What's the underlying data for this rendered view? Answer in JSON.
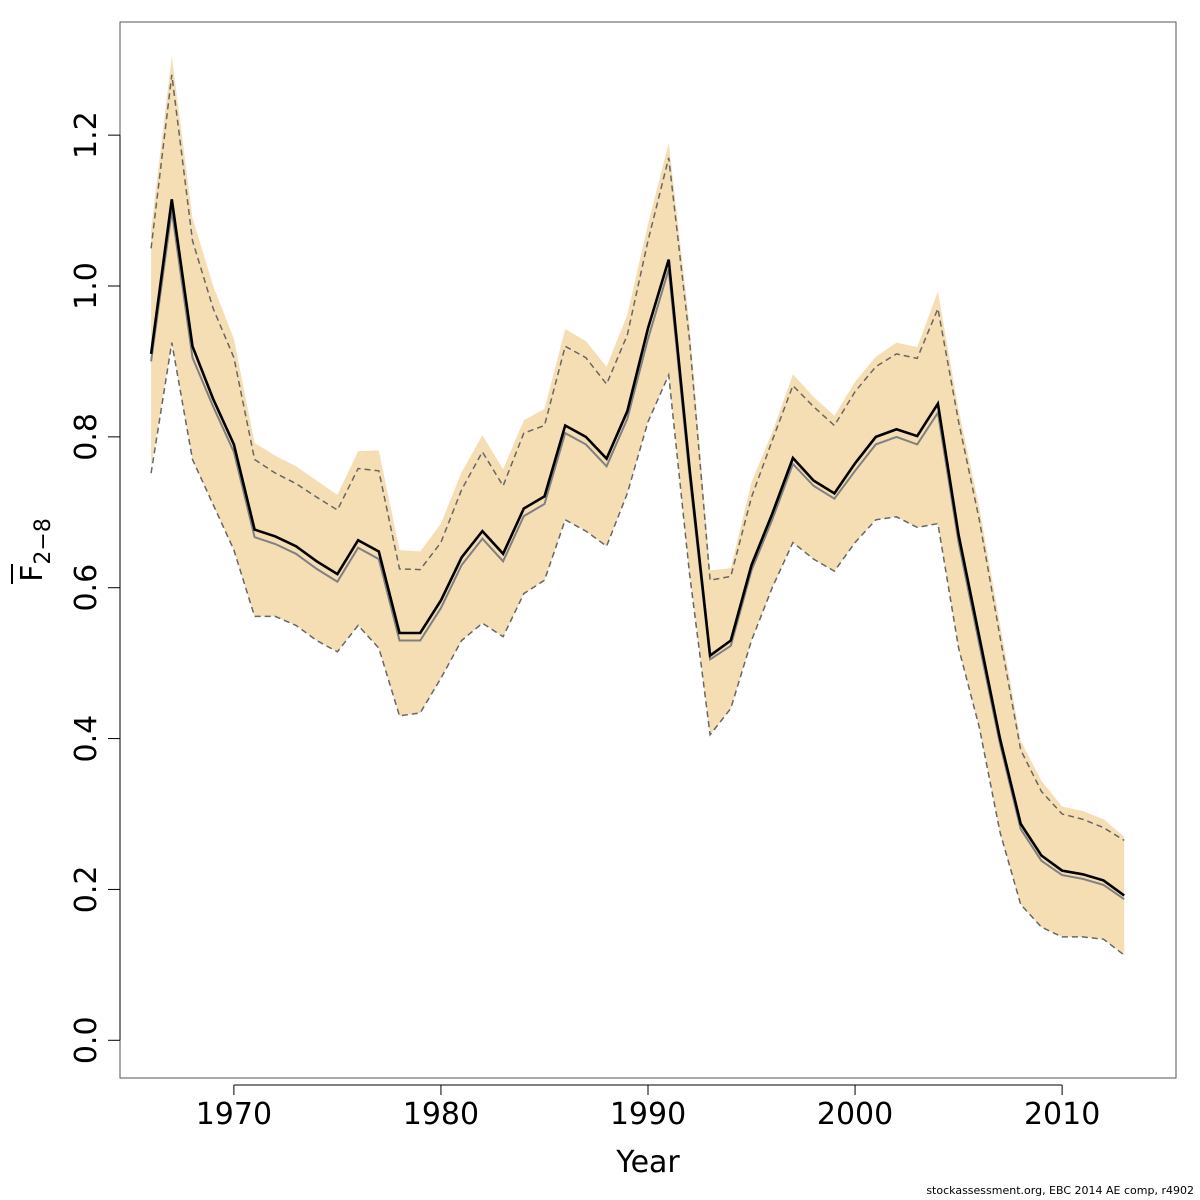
{
  "chart_data": {
    "type": "line",
    "title": "",
    "xlabel": "Year",
    "ylabel": {
      "main": "F",
      "sub": "2−8",
      "overline": true
    },
    "xlim": [
      1964.5,
      2015.5
    ],
    "ylim": [
      -0.05,
      1.35
    ],
    "xticks": [
      1970,
      1980,
      1990,
      2000,
      2010
    ],
    "yticks": [
      0.0,
      0.2,
      0.4,
      0.6,
      0.8,
      1.0,
      1.2
    ],
    "ytick_labels": [
      "0.0",
      "0.2",
      "0.4",
      "0.6",
      "0.8",
      "1.0",
      "1.2"
    ],
    "grid": false,
    "legend": "none",
    "colors": {
      "band": "#f5deb3",
      "estimate": "#000000",
      "median": "#808080",
      "bounds": "#666666"
    },
    "x": [
      1966,
      1967,
      1968,
      1969,
      1970,
      1971,
      1972,
      1973,
      1974,
      1975,
      1976,
      1977,
      1978,
      1979,
      1980,
      1981,
      1982,
      1983,
      1984,
      1985,
      1986,
      1987,
      1988,
      1989,
      1990,
      1991,
      1992,
      1993,
      1994,
      1995,
      1996,
      1997,
      1998,
      1999,
      2000,
      2001,
      2002,
      2003,
      2004,
      2005,
      2006,
      2007,
      2008,
      2009,
      2010,
      2011,
      2012,
      2013
    ],
    "series": [
      {
        "role": "estimate",
        "values": [
          0.91,
          1.115,
          0.92,
          0.85,
          0.79,
          0.677,
          0.668,
          0.655,
          0.635,
          0.618,
          0.663,
          0.648,
          0.54,
          0.54,
          0.583,
          0.64,
          0.675,
          0.645,
          0.705,
          0.721,
          0.815,
          0.8,
          0.771,
          0.834,
          0.944,
          1.035,
          0.76,
          0.51,
          0.53,
          0.63,
          0.698,
          0.772,
          0.742,
          0.725,
          0.765,
          0.8,
          0.81,
          0.801,
          0.844,
          0.67,
          0.535,
          0.4,
          0.287,
          0.245,
          0.225,
          0.22,
          0.212,
          0.192
        ]
      },
      {
        "role": "median",
        "values": [
          0.9,
          1.1,
          0.905,
          0.84,
          0.78,
          0.667,
          0.658,
          0.645,
          0.625,
          0.608,
          0.653,
          0.638,
          0.53,
          0.53,
          0.573,
          0.63,
          0.665,
          0.635,
          0.695,
          0.711,
          0.805,
          0.79,
          0.761,
          0.824,
          0.93,
          1.022,
          0.75,
          0.505,
          0.523,
          0.623,
          0.69,
          0.764,
          0.735,
          0.718,
          0.755,
          0.79,
          0.8,
          0.79,
          0.832,
          0.66,
          0.525,
          0.393,
          0.28,
          0.238,
          0.219,
          0.214,
          0.206,
          0.187
        ]
      },
      {
        "role": "upper",
        "values": [
          1.05,
          1.28,
          1.06,
          0.97,
          0.905,
          0.77,
          0.752,
          0.738,
          0.72,
          0.703,
          0.758,
          0.755,
          0.625,
          0.624,
          0.66,
          0.73,
          0.78,
          0.735,
          0.805,
          0.815,
          0.92,
          0.905,
          0.87,
          0.935,
          1.06,
          1.17,
          0.93,
          0.61,
          0.615,
          0.72,
          0.795,
          0.868,
          0.84,
          0.815,
          0.86,
          0.893,
          0.91,
          0.904,
          0.97,
          0.82,
          0.69,
          0.535,
          0.385,
          0.33,
          0.3,
          0.293,
          0.282,
          0.265
        ]
      },
      {
        "role": "lower",
        "values": [
          0.752,
          0.925,
          0.77,
          0.71,
          0.65,
          0.562,
          0.562,
          0.55,
          0.53,
          0.515,
          0.55,
          0.52,
          0.43,
          0.434,
          0.48,
          0.53,
          0.553,
          0.535,
          0.592,
          0.61,
          0.69,
          0.675,
          0.655,
          0.725,
          0.82,
          0.882,
          0.62,
          0.405,
          0.44,
          0.53,
          0.6,
          0.66,
          0.638,
          0.622,
          0.66,
          0.69,
          0.694,
          0.68,
          0.685,
          0.52,
          0.415,
          0.276,
          0.18,
          0.15,
          0.137,
          0.137,
          0.134,
          0.113
        ]
      },
      {
        "role": "band_upper",
        "values": [
          1.075,
          1.305,
          1.09,
          1.0,
          0.93,
          0.792,
          0.775,
          0.761,
          0.742,
          0.723,
          0.781,
          0.782,
          0.65,
          0.648,
          0.685,
          0.753,
          0.802,
          0.757,
          0.822,
          0.837,
          0.943,
          0.927,
          0.893,
          0.962,
          1.082,
          1.19,
          0.95,
          0.623,
          0.626,
          0.74,
          0.806,
          0.883,
          0.853,
          0.828,
          0.873,
          0.906,
          0.925,
          0.919,
          0.993,
          0.836,
          0.707,
          0.552,
          0.397,
          0.344,
          0.31,
          0.304,
          0.293,
          0.27
        ]
      },
      {
        "role": "band_lower",
        "values": [
          0.76,
          0.925,
          0.77,
          0.71,
          0.65,
          0.562,
          0.562,
          0.55,
          0.53,
          0.515,
          0.55,
          0.52,
          0.43,
          0.434,
          0.48,
          0.53,
          0.553,
          0.535,
          0.592,
          0.61,
          0.69,
          0.675,
          0.655,
          0.725,
          0.82,
          0.882,
          0.62,
          0.405,
          0.44,
          0.53,
          0.6,
          0.66,
          0.638,
          0.622,
          0.66,
          0.69,
          0.694,
          0.68,
          0.685,
          0.52,
          0.415,
          0.276,
          0.18,
          0.15,
          0.137,
          0.137,
          0.134,
          0.113
        ]
      }
    ]
  },
  "footer": {
    "credit": "stockassessment.org, EBC 2014 AE comp, r4902"
  }
}
